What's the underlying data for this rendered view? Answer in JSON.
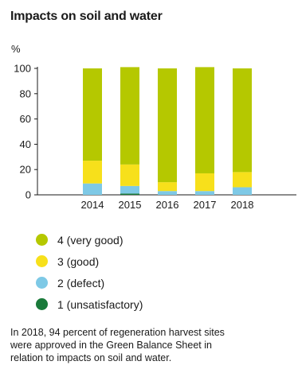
{
  "title": "Impacts on soil and water",
  "chart_data": {
    "type": "bar",
    "stacked": true,
    "ylabel": "%",
    "ylim": [
      0,
      100
    ],
    "yticks": [
      "0",
      "20",
      "40",
      "60",
      "80",
      "100"
    ],
    "categories": [
      "2014",
      "2015",
      "2016",
      "2017",
      "2018"
    ],
    "series": [
      {
        "name": "1 (unsatisfactory)",
        "color": "#1a7a3a",
        "values": [
          0,
          1,
          0,
          0,
          0
        ]
      },
      {
        "name": "2 (defect)",
        "color": "#7ec9e6",
        "values": [
          9,
          6,
          3,
          3,
          6
        ]
      },
      {
        "name": "3 (good)",
        "color": "#f7e01b",
        "values": [
          18,
          17,
          7,
          14,
          12
        ]
      },
      {
        "name": "4 (very good)",
        "color": "#b5c800",
        "values": [
          73,
          77,
          90,
          84,
          82
        ]
      }
    ],
    "legend_order": [
      "4 (very good)",
      "3 (good)",
      "2 (defect)",
      "1 (unsatisfactory)"
    ],
    "legend_position": "bottom-left",
    "grid": false
  },
  "caption": [
    "In 2018, 94 percent of regeneration harvest sites",
    "were approved in the Green Balance Sheet in",
    "relation to impacts on soil and water."
  ]
}
